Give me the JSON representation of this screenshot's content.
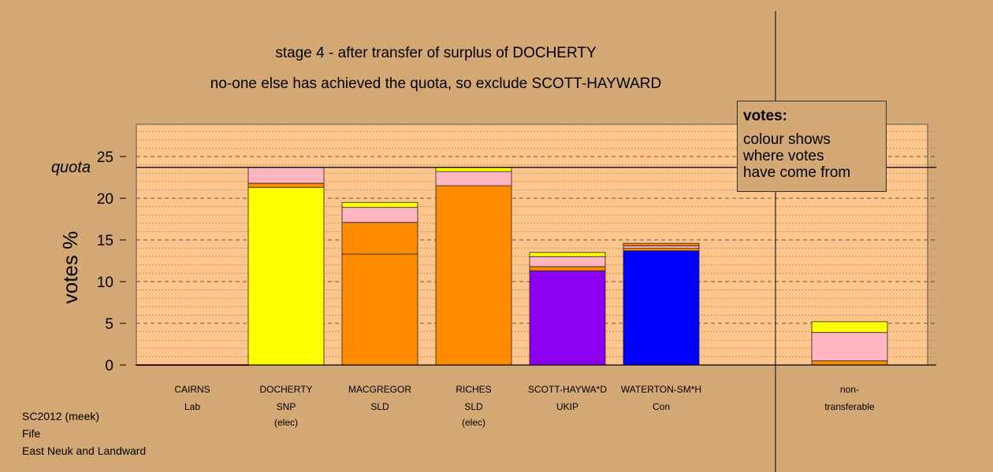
{
  "titles": {
    "line1": "stage 4 - after transfer of surplus of DOCHERTY",
    "line2": "no-one else has achieved the quota, so exclude SCOTT-HAYWARD"
  },
  "legend": {
    "title": "votes:",
    "body": [
      "colour shows",
      "where votes",
      "have come from"
    ]
  },
  "footer": [
    "SC2012 (meek)",
    "Fife",
    "East Neuk and Landward"
  ],
  "colors": {
    "background": "#d3a874",
    "plot_bg": "#fec68c",
    "SNP": "#ffff00",
    "SLD": "#ff8c00",
    "Con_SLD_transfer": "#ffb6c1",
    "UKIP": "#8b00ee",
    "Con": "#0000ff",
    "Lab": "#cd0000"
  },
  "chart_data": {
    "type": "bar",
    "stacked": true,
    "ylabel": "votes %",
    "ylim": [
      0,
      28.5
    ],
    "yticks": [
      0,
      5,
      10,
      15,
      20,
      25
    ],
    "quota": 23.7,
    "quota_label": "quota",
    "candidates": [
      {
        "name": "CAIRNS",
        "party": "Lab",
        "status": "",
        "segments": []
      },
      {
        "name": "DOCHERTY",
        "party": "SNP",
        "status": "(elec)",
        "segments": [
          {
            "color": "#ffff00",
            "value": 21.3
          },
          {
            "color": "#ff8c00",
            "value": 0.5
          },
          {
            "color": "#ffb6c1",
            "value": 1.9
          }
        ]
      },
      {
        "name": "MACGREGOR",
        "party": "SLD",
        "status": "",
        "segments": [
          {
            "color": "#ff8c00",
            "value": 13.3
          },
          {
            "color": "#ff8c00",
            "value": 3.8
          },
          {
            "color": "#ffb6c1",
            "value": 1.8
          },
          {
            "color": "#ffff00",
            "value": 0.6
          }
        ]
      },
      {
        "name": "RICHES",
        "party": "SLD",
        "status": "(elec)",
        "segments": [
          {
            "color": "#ff8c00",
            "value": 21.5
          },
          {
            "color": "#ffb6c1",
            "value": 1.7
          },
          {
            "color": "#ffff00",
            "value": 0.5
          }
        ]
      },
      {
        "name": "SCOTT-HAYWA*D",
        "party": "UKIP",
        "status": "",
        "segments": [
          {
            "color": "#8b00ee",
            "value": 11.3
          },
          {
            "color": "#ff8c00",
            "value": 0.5
          },
          {
            "color": "#ffb6c1",
            "value": 1.2
          },
          {
            "color": "#ffff00",
            "value": 0.5
          }
        ]
      },
      {
        "name": "WATERTON-SM*H",
        "party": "Con",
        "status": "",
        "segments": [
          {
            "color": "#0000ff",
            "value": 13.7
          },
          {
            "color": "#ff8c00",
            "value": 0.3
          },
          {
            "color": "#ffb6c1",
            "value": 0.3
          },
          {
            "color": "#ff8c00",
            "value": 0.3
          }
        ]
      },
      {
        "name": "non-",
        "party": "transferable",
        "status": "",
        "segments": [
          {
            "color": "#ff8c00",
            "value": 0.5
          },
          {
            "color": "#ffb6c1",
            "value": 3.4
          },
          {
            "color": "#ffff00",
            "value": 1.3
          }
        ]
      }
    ]
  }
}
